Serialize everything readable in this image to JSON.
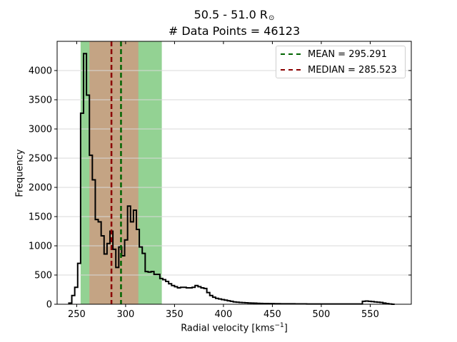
{
  "title": {
    "range_text": "50.5 - 51.0 R",
    "sun_symbol": "⊙",
    "points_line": "# Data Points = 46123"
  },
  "axes": {
    "xlabel_main": "Radial velocity [kms",
    "xlabel_exp": "−1",
    "xlabel_close": "]",
    "ylabel": "Frequency",
    "xlim": [
      230,
      592
    ],
    "ylim": [
      0,
      4500
    ],
    "xticks": [
      250,
      300,
      350,
      400,
      450,
      500,
      550
    ],
    "yticks": [
      0,
      500,
      1000,
      1500,
      2000,
      2500,
      3000,
      3500,
      4000
    ],
    "grid_y": true
  },
  "legend": {
    "placement": "top-right",
    "mean_label": "MEAN = 295.291",
    "median_label": "MEDIAN = 285.523"
  },
  "colors": {
    "mean_line": "#006400",
    "median_line": "#8b0000",
    "histogram": "#000000",
    "outer_band": "#93d293",
    "inner_band": "#c4a484",
    "grid": "#d9d9d9"
  },
  "chart_data": {
    "type": "histogram",
    "title": "50.5 - 51.0 R⊙  # Data Points = 46123",
    "xlabel": "Radial velocity [kms−1]",
    "ylabel": "Frequency",
    "bin_width": 3,
    "bin_start": 242,
    "counts": [
      20,
      150,
      290,
      700,
      3270,
      4290,
      3580,
      2550,
      2130,
      1450,
      1410,
      1170,
      860,
      1040,
      1250,
      940,
      630,
      980,
      830,
      1100,
      1680,
      1410,
      1610,
      1280,
      980,
      870,
      560,
      550,
      560,
      510,
      510,
      440,
      420,
      390,
      350,
      320,
      300,
      280,
      290,
      290,
      280,
      280,
      290,
      320,
      300,
      280,
      270,
      200,
      150,
      120,
      100,
      90,
      80,
      70,
      60,
      50,
      40,
      35,
      30,
      28,
      25,
      22,
      20,
      18,
      16,
      14,
      12,
      12,
      10,
      10,
      9,
      9,
      8,
      8,
      7,
      7,
      7,
      6,
      6,
      6,
      6,
      5,
      5,
      5,
      5,
      5,
      5,
      4,
      4,
      4,
      4,
      4,
      4,
      4,
      4,
      4,
      4,
      4,
      4,
      5,
      50,
      55,
      50,
      45,
      40,
      35,
      30,
      20,
      10,
      5,
      0
    ],
    "mean": 295.291,
    "median": 285.523,
    "bands": [
      {
        "name": "outer",
        "x_start": 254,
        "x_end": 337
      },
      {
        "name": "inner",
        "x_start": 263,
        "x_end": 313
      }
    ]
  }
}
